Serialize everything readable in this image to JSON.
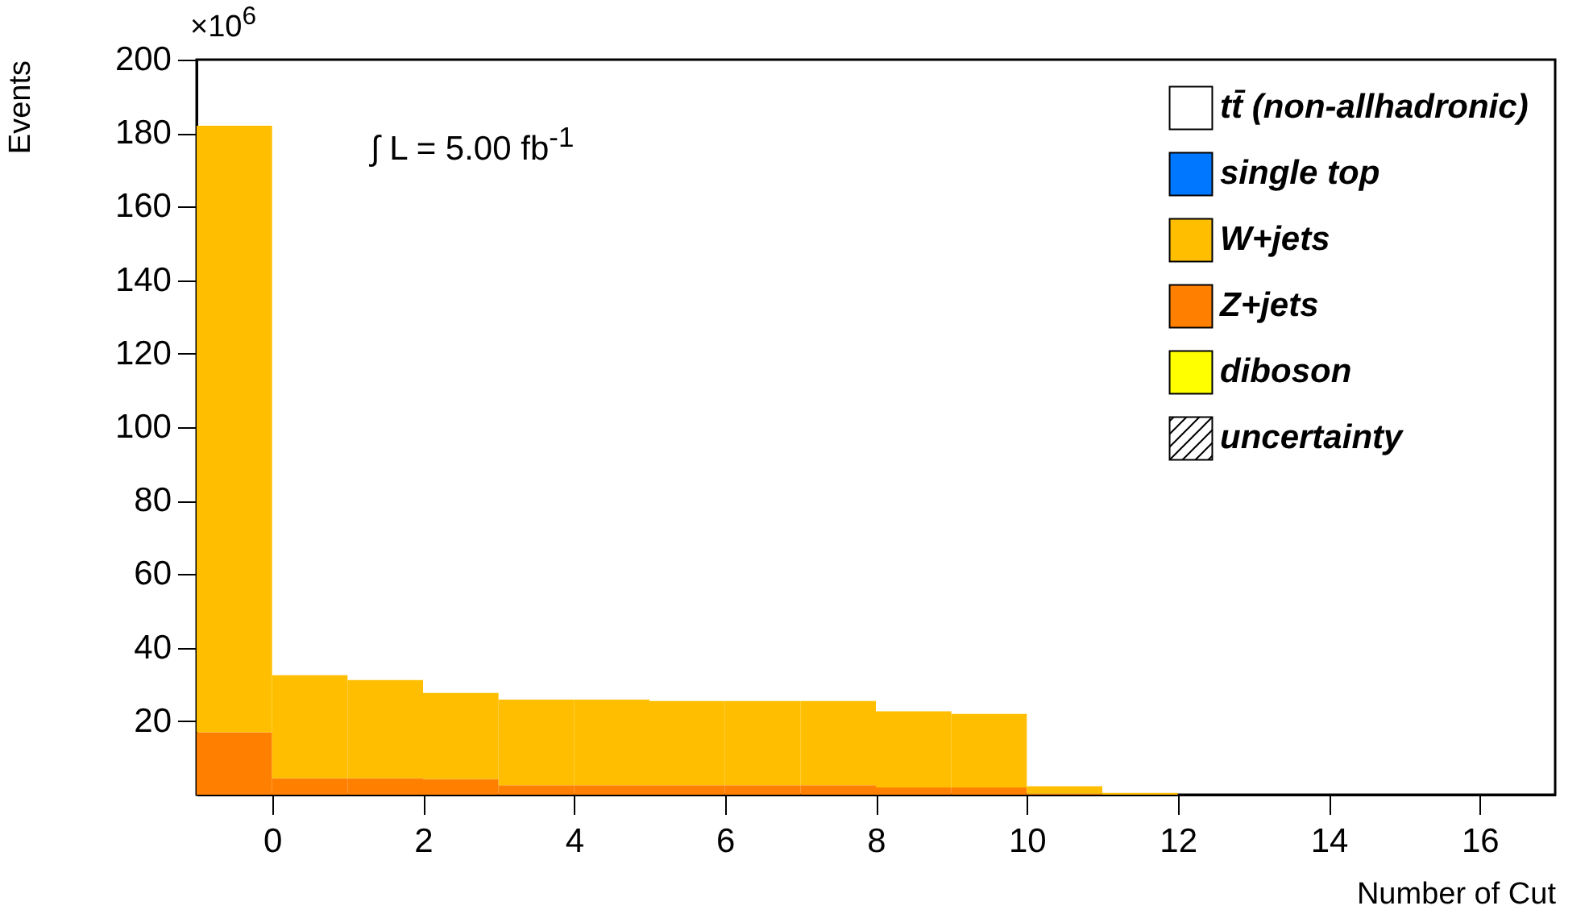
{
  "chart_data": {
    "type": "bar",
    "xlabel": "Number of Cut",
    "ylabel": "Events",
    "x": [
      -0.5,
      0.5,
      1.5,
      2.5,
      3.5,
      4.5,
      5.5,
      6.5,
      7.5,
      8.5,
      9.5,
      10.5,
      11.5,
      12.5,
      13.5,
      14.5,
      15.5,
      16.5
    ],
    "stacked": true,
    "series": [
      {
        "name": "diboson",
        "color": "#ffff00",
        "values": [
          0,
          0,
          0,
          0,
          0,
          0,
          0,
          0,
          0,
          0,
          0,
          0,
          0,
          0,
          0,
          0,
          0,
          0
        ]
      },
      {
        "name": "Z+jets",
        "color": "#ff7f00",
        "values": [
          17,
          4.5,
          4.5,
          4.3,
          2.6,
          2.6,
          2.6,
          2.6,
          2.6,
          2,
          2,
          0.3,
          0,
          0,
          0,
          0,
          0,
          0
        ]
      },
      {
        "name": "W+jets",
        "color": "#ffbf00",
        "values": [
          165,
          28,
          26.7,
          23.4,
          23.3,
          23.3,
          22.9,
          22.9,
          22.9,
          20.7,
          20,
          2,
          0.5,
          0,
          0,
          0,
          0,
          0
        ]
      },
      {
        "name": "single top",
        "color": "#0077ff",
        "values": [
          0,
          0,
          0,
          0,
          0,
          0,
          0,
          0,
          0,
          0,
          0,
          0,
          0,
          0,
          0,
          0,
          0,
          0
        ]
      },
      {
        "name": "tt̄ (non-allhadronic)",
        "color": "#ffffff",
        "values": [
          0,
          0,
          0,
          0,
          0,
          0,
          0,
          0,
          0,
          0,
          0,
          0,
          0,
          0,
          0,
          0,
          0,
          0
        ]
      },
      {
        "name": "uncertainty",
        "values": [
          null,
          null,
          null,
          null,
          null,
          null,
          null,
          null,
          null,
          null,
          null,
          null,
          null,
          null,
          null,
          null,
          null,
          null
        ]
      }
    ],
    "xlim": [
      -1,
      17
    ],
    "xticks": [
      0,
      2,
      4,
      6,
      8,
      10,
      12,
      14,
      16
    ],
    "ylim": [
      0,
      200
    ],
    "yticks": [
      20,
      40,
      60,
      80,
      100,
      120,
      140,
      160,
      180,
      200
    ],
    "legend": "top right",
    "grid": false,
    "annotations": [
      "×10$^{6}$",
      "∫ L = 5.00 fb$^{-1}$"
    ]
  }
}
